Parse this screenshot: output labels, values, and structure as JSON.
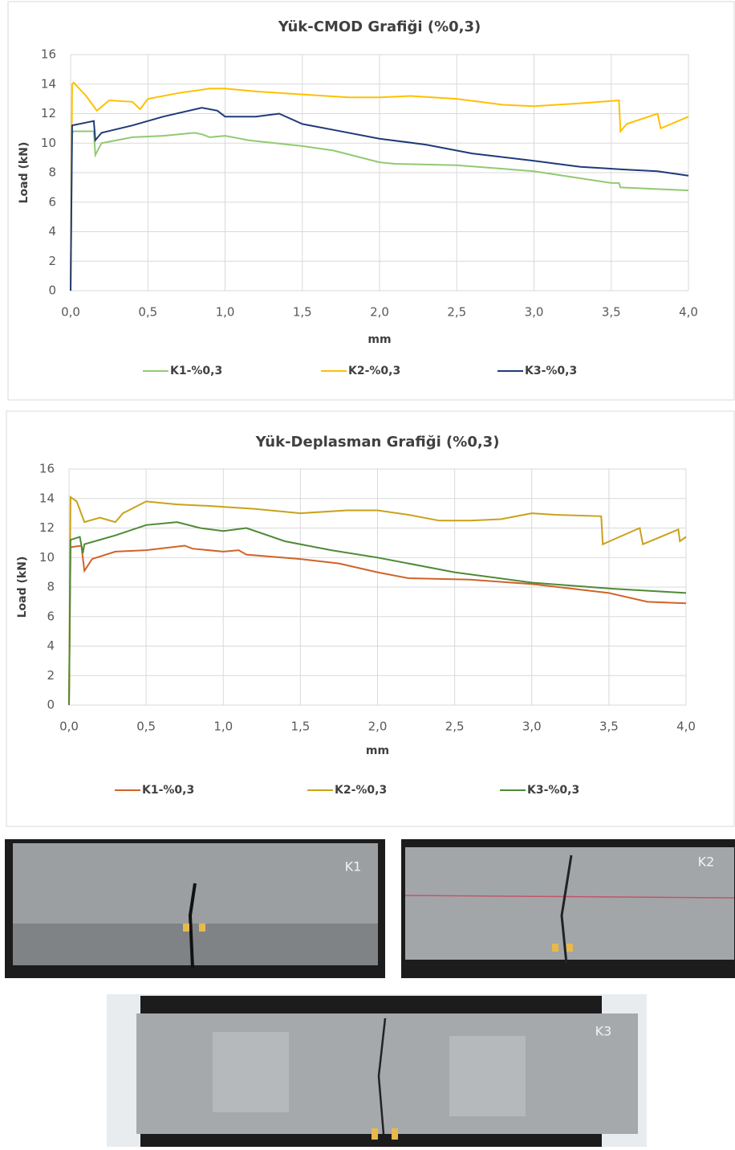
{
  "chart_data": [
    {
      "type": "line",
      "title": "Yük-CMOD Grafiği (%0,3)",
      "x_label": "mm",
      "y_label": "Load (kN)",
      "xlim": [
        0,
        4
      ],
      "xticks": [
        {
          "value": 0,
          "label": "0,0"
        },
        {
          "value": 0.5,
          "label": "0,5"
        },
        {
          "value": 1,
          "label": "1,0"
        },
        {
          "value": 1.5,
          "label": "1,5"
        },
        {
          "value": 2,
          "label": "2,0"
        },
        {
          "value": 2.5,
          "label": "2,5"
        },
        {
          "value": 3,
          "label": "3,0"
        },
        {
          "value": 3.5,
          "label": "3,5"
        },
        {
          "value": 4,
          "label": "4,0"
        }
      ],
      "ylim": [
        0,
        16
      ],
      "yticks": [
        0,
        2,
        4,
        6,
        8,
        10,
        12,
        14,
        16
      ],
      "grid": true,
      "legend": "bottom",
      "series": [
        {
          "name": "K1-%0,3",
          "color": "#92c973",
          "x": [
            0,
            0.01,
            0.02,
            0.15,
            0.16,
            0.2,
            0.4,
            0.6,
            0.8,
            0.85,
            0.9,
            1.0,
            1.1,
            1.15,
            1.5,
            1.7,
            2.0,
            2.1,
            2.5,
            3.0,
            3.5,
            3.55,
            3.56,
            4.0
          ],
          "values": [
            0,
            10.7,
            10.8,
            10.8,
            9.2,
            10.0,
            10.4,
            10.5,
            10.7,
            10.6,
            10.4,
            10.5,
            10.3,
            10.2,
            9.8,
            9.5,
            8.7,
            8.6,
            8.5,
            8.1,
            7.3,
            7.3,
            7.0,
            6.8
          ]
        },
        {
          "name": "K2-%0,3",
          "color": "#ffc000",
          "x": [
            0,
            0.01,
            0.02,
            0.1,
            0.17,
            0.25,
            0.4,
            0.45,
            0.5,
            0.7,
            0.9,
            1.0,
            1.2,
            1.5,
            1.8,
            2.0,
            2.2,
            2.5,
            2.8,
            3.0,
            3.3,
            3.55,
            3.56,
            3.6,
            3.8,
            3.82,
            4.0
          ],
          "values": [
            0,
            14.0,
            14.1,
            13.2,
            12.2,
            12.9,
            12.8,
            12.3,
            13.0,
            13.4,
            13.7,
            13.7,
            13.5,
            13.3,
            13.1,
            13.1,
            13.2,
            13.0,
            12.6,
            12.5,
            12.7,
            12.9,
            10.8,
            11.3,
            12.0,
            11.0,
            11.8
          ]
        },
        {
          "name": "K3-%0,3",
          "color": "#1f3a7a",
          "x": [
            0,
            0.01,
            0.15,
            0.16,
            0.2,
            0.4,
            0.6,
            0.85,
            0.95,
            1.0,
            1.2,
            1.35,
            1.5,
            1.7,
            2.0,
            2.3,
            2.6,
            3.0,
            3.3,
            3.6,
            3.8,
            4.0
          ],
          "values": [
            0,
            11.2,
            11.5,
            10.2,
            10.7,
            11.2,
            11.8,
            12.4,
            12.2,
            11.8,
            11.8,
            12.0,
            11.3,
            10.9,
            10.3,
            9.9,
            9.3,
            8.8,
            8.4,
            8.2,
            8.1,
            7.8
          ]
        }
      ]
    },
    {
      "type": "line",
      "title": "Yük-Deplasman Grafiği (%0,3)",
      "x_label": "mm",
      "y_label": "Load (kN)",
      "xlim": [
        0,
        4
      ],
      "xticks": [
        {
          "value": 0,
          "label": "0,0"
        },
        {
          "value": 0.5,
          "label": "0,5"
        },
        {
          "value": 1,
          "label": "1,0"
        },
        {
          "value": 1.5,
          "label": "1,5"
        },
        {
          "value": 2,
          "label": "2,0"
        },
        {
          "value": 2.5,
          "label": "2,5"
        },
        {
          "value": 3,
          "label": "3,0"
        },
        {
          "value": 3.5,
          "label": "3,5"
        },
        {
          "value": 4,
          "label": "4,0"
        }
      ],
      "ylim": [
        0,
        16
      ],
      "yticks": [
        0,
        2,
        4,
        6,
        8,
        10,
        12,
        14,
        16
      ],
      "grid": true,
      "legend": "bottom",
      "series": [
        {
          "name": "K1-%0,3",
          "color": "#d0632a",
          "x": [
            0,
            0.01,
            0.08,
            0.1,
            0.15,
            0.3,
            0.5,
            0.75,
            0.8,
            1.0,
            1.1,
            1.15,
            1.5,
            1.75,
            2.0,
            2.2,
            2.6,
            3.0,
            3.5,
            3.75,
            4.0
          ],
          "values": [
            0,
            10.7,
            10.8,
            9.1,
            9.9,
            10.4,
            10.5,
            10.8,
            10.6,
            10.4,
            10.5,
            10.2,
            9.9,
            9.6,
            9.0,
            8.6,
            8.5,
            8.2,
            7.6,
            7.0,
            6.9
          ]
        },
        {
          "name": "K2-%0,3",
          "color": "#c9a21a",
          "x": [
            0,
            0.01,
            0.05,
            0.1,
            0.2,
            0.3,
            0.35,
            0.5,
            0.7,
            0.9,
            1.2,
            1.5,
            1.8,
            2.0,
            2.2,
            2.4,
            2.6,
            2.8,
            3.0,
            3.15,
            3.45,
            3.46,
            3.7,
            3.72,
            3.95,
            3.96,
            4.0
          ],
          "values": [
            0,
            14.1,
            13.8,
            12.4,
            12.7,
            12.4,
            13.0,
            13.8,
            13.6,
            13.5,
            13.3,
            13.0,
            13.2,
            13.2,
            12.9,
            12.5,
            12.5,
            12.6,
            13.0,
            12.9,
            12.8,
            10.9,
            12.0,
            10.9,
            11.9,
            11.1,
            11.4
          ]
        },
        {
          "name": "K3-%0,3",
          "color": "#4e8a36",
          "x": [
            0,
            0.01,
            0.07,
            0.09,
            0.1,
            0.3,
            0.5,
            0.7,
            0.85,
            1.0,
            1.15,
            1.4,
            1.7,
            2.0,
            2.5,
            3.0,
            3.5,
            4.0
          ],
          "values": [
            0,
            11.2,
            11.4,
            10.3,
            10.9,
            11.5,
            12.2,
            12.4,
            12.0,
            11.8,
            12.0,
            11.1,
            10.5,
            10.0,
            9.0,
            8.3,
            7.9,
            7.6
          ]
        }
      ]
    }
  ],
  "photos": {
    "labels": [
      "K1",
      "K2",
      "K3"
    ]
  }
}
